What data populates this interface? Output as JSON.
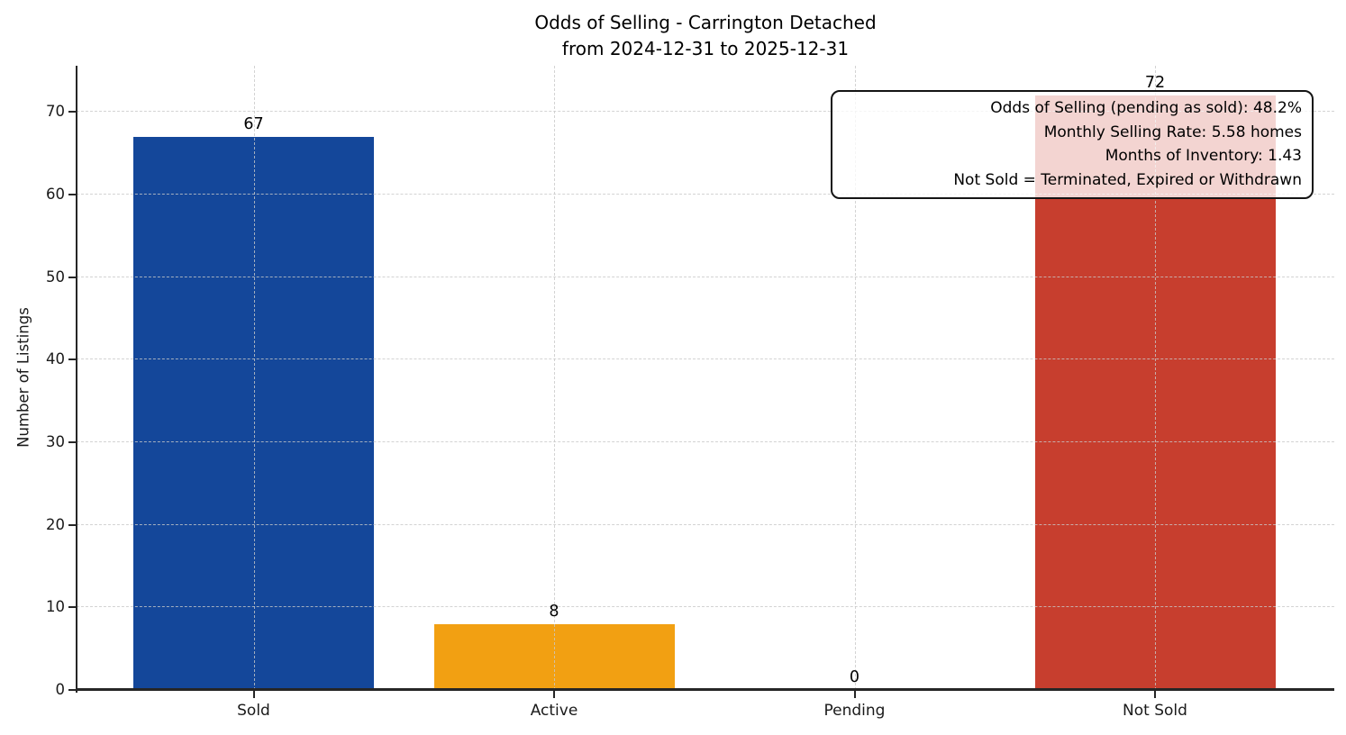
{
  "chart_data": {
    "type": "bar",
    "title": "Odds of Selling - Carrington Detached",
    "subtitle": "from 2024-12-31 to 2025-12-31",
    "xlabel": "",
    "ylabel": "Number of Listings",
    "categories": [
      "Sold",
      "Active",
      "Pending",
      "Not Sold"
    ],
    "values": [
      67,
      8,
      0,
      72
    ],
    "bar_colors": [
      "#14479A",
      "#F2A012",
      null,
      "#C73E2E"
    ],
    "yticks": [
      0,
      10,
      20,
      30,
      40,
      50,
      60,
      70
    ],
    "ylim": [
      0,
      75.6
    ],
    "grid": "dashed both axes, light gray, drawn over bars",
    "legend_position": "none",
    "annotation": {
      "lines": [
        "Odds of Selling (pending as sold): 48.2%",
        "Monthly Selling Rate: 5.58 homes",
        "Months of Inventory: 1.43",
        "Not Sold = Terminated, Expired or Withdrawn"
      ]
    },
    "colors": {
      "sold_bar": "#14479A",
      "active_bar": "#F2A012",
      "not_sold_bar": "#C73E2E",
      "spine": "#262626",
      "gridline": "#c9c9c9",
      "text": "#000000",
      "background": "#ffffff"
    }
  }
}
